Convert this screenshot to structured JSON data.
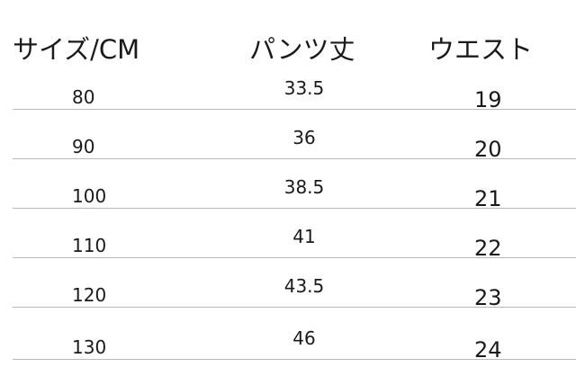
{
  "table": {
    "headers": [
      "サイズ/CM",
      "パンツ丈",
      "ウエスト"
    ],
    "rows": [
      [
        "80",
        "33.5",
        "19"
      ],
      [
        "90",
        "36",
        "20"
      ],
      [
        "100",
        "38.5",
        "21"
      ],
      [
        "110",
        "41",
        "22"
      ],
      [
        "120",
        "43.5",
        "23"
      ],
      [
        "130",
        "46",
        "24"
      ]
    ]
  }
}
